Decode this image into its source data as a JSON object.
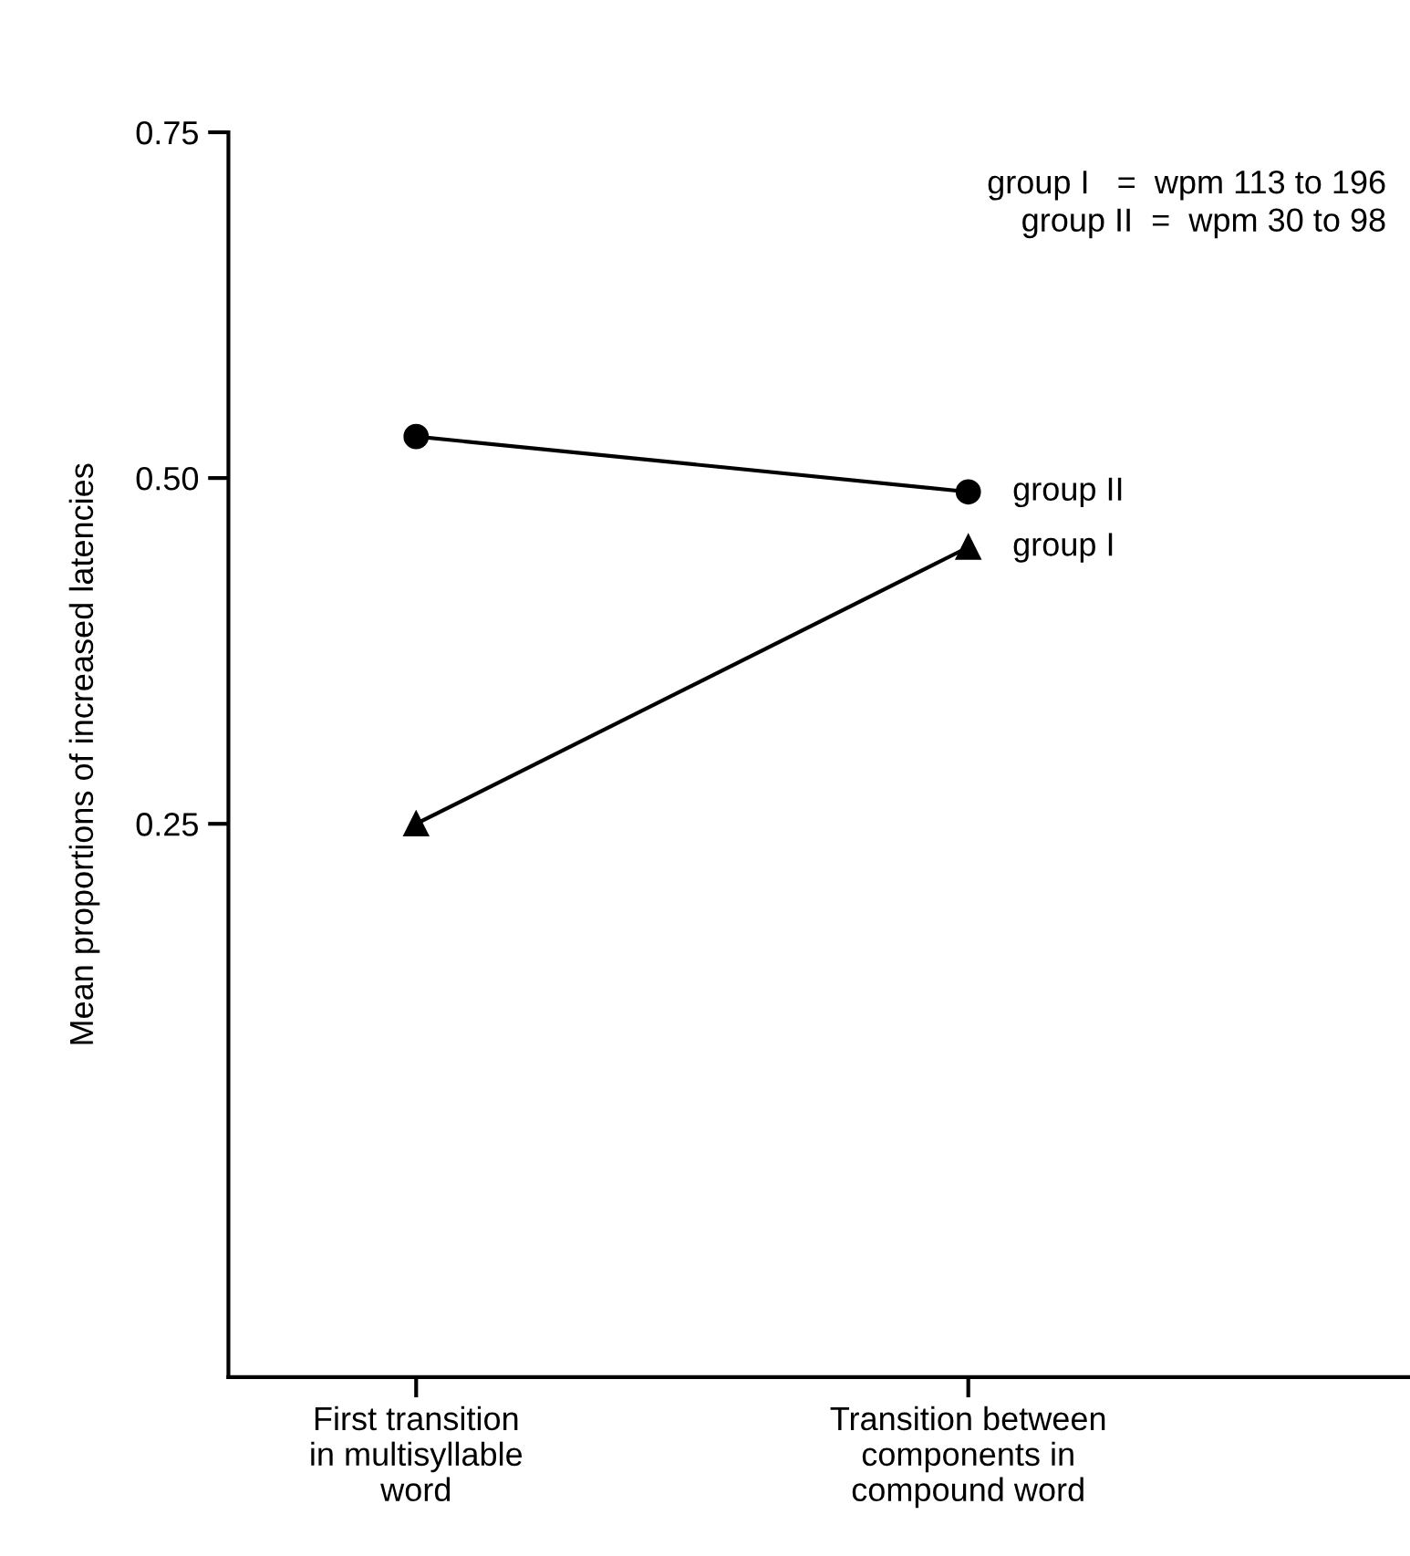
{
  "chart_data": {
    "type": "line",
    "ylabel": "Mean proportions of increased latencies",
    "categories": [
      "First transition\nin multisyllable\nword",
      "Transition between\ncomponents in\ncompound word"
    ],
    "series": [
      {
        "name": "group II",
        "color": "#000000",
        "marker": "circle",
        "values": [
          0.53,
          0.49
        ]
      },
      {
        "name": "group I",
        "color": "#000000",
        "marker": "triangle",
        "values": [
          0.25,
          0.45
        ]
      }
    ],
    "ylim": [
      -0.15,
      0.75
    ],
    "yticks": [
      {
        "value": 0.25,
        "label": "0.25"
      },
      {
        "value": 0.5,
        "label": "0.50"
      },
      {
        "value": 0.75,
        "label": "0.75"
      }
    ],
    "annotations": [
      "group I   =  wpm 113 to 196\ngroup II  =  wpm 30 to 98"
    ],
    "grid": false,
    "legend": false,
    "line_style": "solid"
  }
}
